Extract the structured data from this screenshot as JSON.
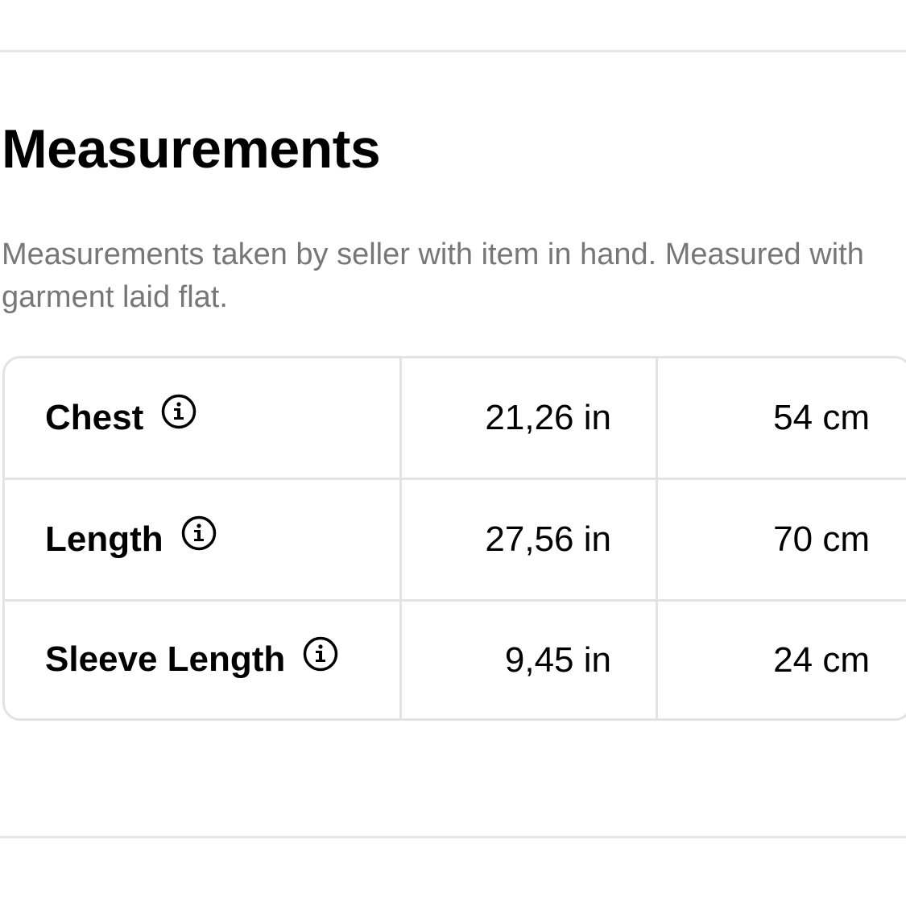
{
  "section": {
    "title": "Measurements",
    "description": "Measurements taken by seller with item in hand. Measured with garment laid flat."
  },
  "measurements": [
    {
      "label": "Chest",
      "inches": "21,26 in",
      "cm": "54 cm",
      "icon": "info-icon"
    },
    {
      "label": "Length",
      "inches": "27,56 in",
      "cm": "70 cm",
      "icon": "info-icon"
    },
    {
      "label": "Sleeve Length",
      "inches": "9,45 in",
      "cm": "24 cm",
      "icon": "info-icon"
    }
  ]
}
